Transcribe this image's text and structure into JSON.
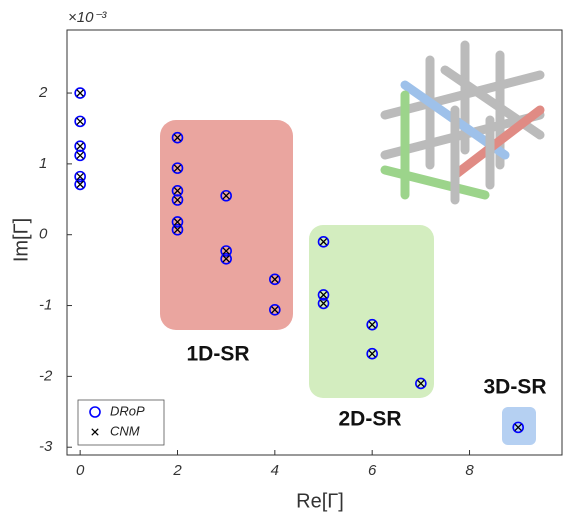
{
  "chart_data": {
    "type": "scatter",
    "exponent_label": "×10⁻³",
    "x_label": "Re[Γ]",
    "y_label": "Im[Γ]",
    "xlim": [
      -0.27,
      9.9
    ],
    "xticks": [
      0,
      2,
      4,
      6,
      8
    ],
    "ylim": [
      -3.11,
      2.89
    ],
    "yticks": [
      -3,
      -2,
      -1,
      0,
      1,
      2
    ],
    "regions": [
      "1D-SR",
      "2D-SR",
      "3D-SR"
    ],
    "series": [
      {
        "name": "DRoP",
        "color": "#0000ff",
        "marker": "o",
        "x": [
          0,
          0,
          0,
          0,
          0,
          0,
          2,
          2,
          2,
          2,
          2,
          2,
          3,
          3,
          3,
          4,
          4,
          5,
          5,
          5,
          6,
          6,
          7,
          9
        ],
        "values": [
          2.0,
          1.6,
          1.25,
          1.12,
          0.82,
          0.71,
          1.37,
          0.94,
          0.62,
          0.49,
          0.18,
          0.07,
          0.55,
          -0.23,
          -0.34,
          -0.63,
          -1.06,
          -0.1,
          -0.85,
          -0.97,
          -1.27,
          -1.68,
          -2.1,
          -2.72
        ]
      },
      {
        "name": "CNM",
        "color": "#000000",
        "marker": "x",
        "x": [
          0,
          0,
          0,
          0,
          0,
          0,
          2,
          2,
          2,
          2,
          2,
          2,
          3,
          3,
          3,
          4,
          4,
          5,
          5,
          5,
          6,
          6,
          7,
          9
        ],
        "values": [
          2.0,
          1.6,
          1.25,
          1.12,
          0.82,
          0.71,
          1.37,
          0.94,
          0.62,
          0.49,
          0.18,
          0.07,
          0.55,
          -0.23,
          -0.34,
          -0.63,
          -1.06,
          -0.1,
          -0.85,
          -0.97,
          -1.27,
          -1.68,
          -2.1,
          -2.72
        ]
      }
    ]
  }
}
